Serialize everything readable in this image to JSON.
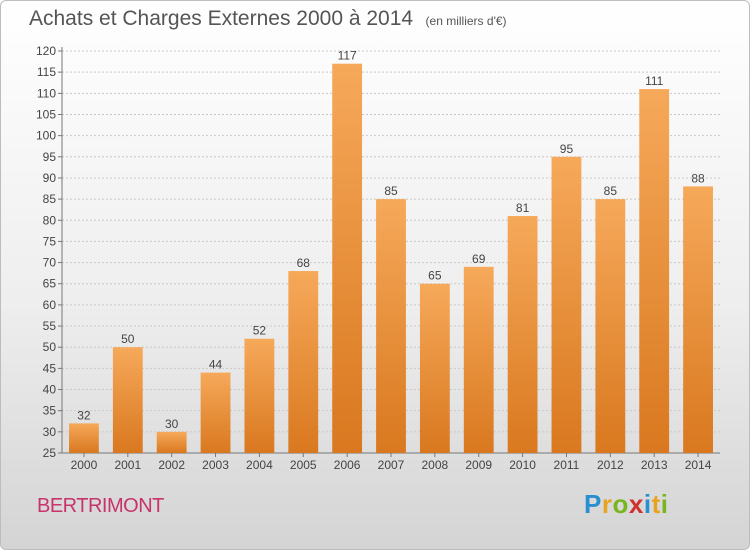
{
  "header": {
    "title": "Achats et Charges Externes 2000 à 2014",
    "subtitle": "(en milliers d'€)"
  },
  "footer": {
    "commune": "BERTRIMONT",
    "logo": {
      "letters": [
        {
          "char": "P",
          "color": "#2a8fd0"
        },
        {
          "char": "r",
          "color": "#e8a320"
        },
        {
          "char": "o",
          "color": "#7ab51d"
        },
        {
          "char": "x",
          "color": "#d0302f"
        },
        {
          "char": "i",
          "color": "#2a8fd0"
        },
        {
          "char": "t",
          "color": "#e8a320"
        },
        {
          "char": "i",
          "color": "#7ab51d"
        }
      ]
    }
  },
  "colors": {
    "bar_top": "#f6a95a",
    "bar_bottom": "#d9781f",
    "grid": "#c9c9c9",
    "text": "#444444"
  },
  "chart_data": {
    "type": "bar",
    "categories": [
      "2000",
      "2001",
      "2002",
      "2003",
      "2004",
      "2005",
      "2006",
      "2007",
      "2008",
      "2009",
      "2010",
      "2011",
      "2012",
      "2013",
      "2014"
    ],
    "values": [
      32,
      50,
      30,
      44,
      52,
      68,
      117,
      85,
      65,
      69,
      81,
      95,
      85,
      111,
      88
    ],
    "title": "Achats et Charges Externes 2000 à 2014",
    "ylim": [
      25,
      120
    ],
    "yticks": [
      25,
      30,
      35,
      40,
      45,
      50,
      55,
      60,
      65,
      70,
      75,
      80,
      85,
      90,
      95,
      100,
      105,
      110,
      115,
      120
    ],
    "grid": true,
    "data_labels": true
  }
}
